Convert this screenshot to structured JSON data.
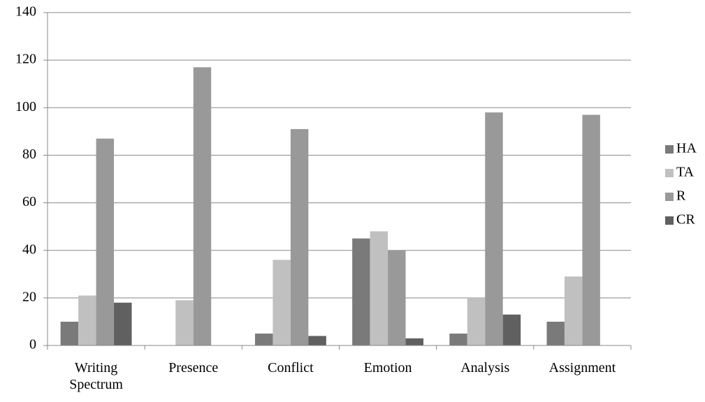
{
  "chart_data": {
    "type": "bar",
    "categories": [
      "Writing Spectrum",
      "Presence",
      "Conflict",
      "Emotion",
      "Analysis",
      "Assignment"
    ],
    "series": [
      {
        "name": "HA",
        "color": "#7a7a7a",
        "values": [
          10,
          0,
          5,
          45,
          5,
          10
        ]
      },
      {
        "name": "TA",
        "color": "#c0c0c0",
        "values": [
          21,
          19,
          36,
          48,
          20,
          29
        ]
      },
      {
        "name": "R",
        "color": "#999999",
        "values": [
          87,
          117,
          91,
          40,
          98,
          97
        ]
      },
      {
        "name": "CR",
        "color": "#606060",
        "values": [
          18,
          0,
          4,
          3,
          13,
          0
        ]
      }
    ],
    "ylim": [
      0,
      140
    ],
    "yticks": [
      0,
      20,
      40,
      60,
      80,
      100,
      120,
      140
    ],
    "grid": true,
    "legend": "right"
  }
}
